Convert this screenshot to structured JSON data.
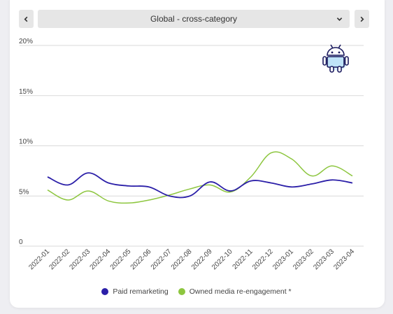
{
  "selector": {
    "label": "Global - cross-category",
    "prev_icon": "chevron-left-icon",
    "next_icon": "chevron-right-icon",
    "dropdown_icon": "chevron-down-icon"
  },
  "platform_icon": "android-icon",
  "colors": {
    "paid": "#2b1fa8",
    "owned": "#8dc63f",
    "grid": "#d9d9d9"
  },
  "chart_data": {
    "type": "line",
    "title": "",
    "xlabel": "",
    "ylabel": "",
    "ylim": [
      0,
      20
    ],
    "y_ticks": [
      {
        "value": 0,
        "label": "0"
      },
      {
        "value": 5,
        "label": "5%"
      },
      {
        "value": 10,
        "label": "10%"
      },
      {
        "value": 15,
        "label": "15%"
      },
      {
        "value": 20,
        "label": "20%"
      }
    ],
    "grid": true,
    "legend": "bottom",
    "categories": [
      "2022-01",
      "2022-02",
      "2022-03",
      "2022-04",
      "2022-05",
      "2022-06",
      "2022-07",
      "2022-08",
      "2022-09",
      "2022-10",
      "2022-11",
      "2022-12",
      "2023-01",
      "2023-02",
      "2023-03",
      "2023-04"
    ],
    "series": [
      {
        "name": "Paid remarketing",
        "values": [
          6.9,
          6.1,
          7.3,
          6.3,
          6.0,
          5.9,
          5.0,
          5.0,
          6.4,
          5.5,
          6.5,
          6.3,
          5.9,
          6.2,
          6.6,
          6.3
        ]
      },
      {
        "name": "Owned media re-engagement *",
        "values": [
          5.6,
          4.6,
          5.5,
          4.5,
          4.3,
          4.6,
          5.1,
          5.7,
          6.1,
          5.4,
          6.9,
          9.3,
          8.7,
          7.0,
          8.0,
          7.0
        ]
      }
    ]
  }
}
